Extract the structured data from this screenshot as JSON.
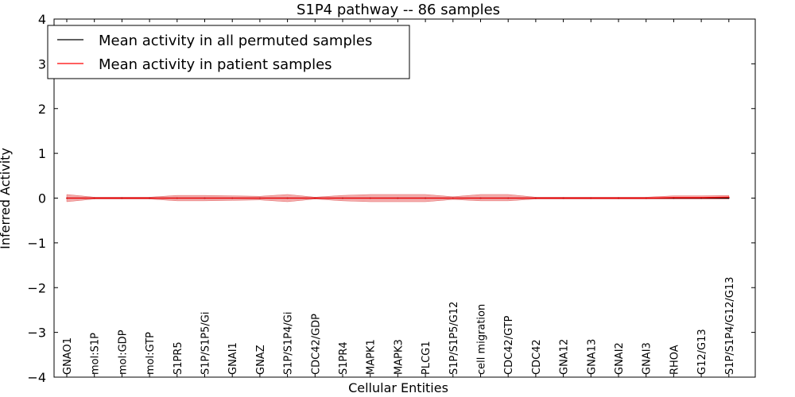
{
  "chart_data": {
    "type": "line",
    "title": "S1P4 pathway -- 86 samples",
    "xlabel": "Cellular Entities",
    "ylabel": "Inferred Activity",
    "ylim": [
      -4,
      4
    ],
    "yticks": [
      "4",
      "3",
      "2",
      "1",
      "0",
      "−1",
      "−2",
      "−3",
      "−4"
    ],
    "ytick_values": [
      4,
      3,
      2,
      1,
      0,
      -1,
      -2,
      -3,
      -4
    ],
    "categories": [
      "GNAO1",
      "mol:S1P",
      "mol:GDP",
      "mol:GTP",
      "S1PR5",
      "S1P/S1P5/Gi",
      "GNAI1",
      "GNAZ",
      "S1P/S1P4/Gi",
      "CDC42/GDP",
      "S1PR4",
      "MAPK1",
      "MAPK3",
      "PLCG1",
      "S1P/S1P5/G12",
      "cell migration",
      "CDC42/GTP",
      "CDC42",
      "GNA12",
      "GNA13",
      "GNAI2",
      "GNAI3",
      "RHOA",
      "G12/G13",
      "S1P/S1P4/G12/G13"
    ],
    "series": [
      {
        "name": "Mean activity in all permuted samples",
        "color": "#000000",
        "values": [
          0,
          0,
          0,
          0,
          0,
          0,
          0,
          0,
          0,
          0,
          0,
          0,
          0,
          0,
          0,
          0,
          0,
          0,
          0,
          0,
          0,
          0,
          0,
          0,
          0
        ],
        "band_lower": [
          -0.02,
          -0.02,
          -0.02,
          -0.02,
          -0.02,
          -0.02,
          -0.02,
          -0.02,
          -0.02,
          -0.02,
          -0.02,
          -0.02,
          -0.02,
          -0.02,
          -0.02,
          -0.02,
          -0.02,
          -0.02,
          -0.02,
          -0.02,
          -0.02,
          -0.02,
          -0.02,
          -0.02,
          -0.02
        ],
        "band_upper": [
          0.02,
          0.02,
          0.02,
          0.02,
          0.02,
          0.02,
          0.02,
          0.02,
          0.02,
          0.02,
          0.02,
          0.02,
          0.02,
          0.02,
          0.02,
          0.02,
          0.02,
          0.02,
          0.02,
          0.02,
          0.02,
          0.02,
          0.02,
          0.02,
          0.02
        ]
      },
      {
        "name": "Mean activity in patient samples",
        "color": "#ff0000",
        "band_color": "#f08080",
        "values": [
          0.0,
          0.0,
          0.0,
          0.0,
          0.0,
          0.0,
          0.0,
          0.0,
          0.0,
          0.0,
          0.0,
          0.0,
          0.0,
          0.0,
          0.0,
          0.0,
          0.0,
          0.0,
          0.0,
          0.0,
          0.0,
          0.0,
          0.01,
          0.01,
          0.02
        ],
        "band_lower": [
          -0.08,
          -0.02,
          -0.02,
          -0.02,
          -0.06,
          -0.06,
          -0.05,
          -0.04,
          -0.08,
          -0.02,
          -0.06,
          -0.08,
          -0.08,
          -0.08,
          -0.03,
          -0.06,
          -0.06,
          -0.02,
          -0.02,
          -0.02,
          -0.02,
          -0.02,
          -0.02,
          -0.02,
          -0.02
        ],
        "band_upper": [
          0.08,
          0.02,
          0.02,
          0.02,
          0.06,
          0.06,
          0.05,
          0.04,
          0.08,
          0.02,
          0.06,
          0.08,
          0.08,
          0.08,
          0.03,
          0.08,
          0.08,
          0.02,
          0.02,
          0.02,
          0.02,
          0.02,
          0.05,
          0.05,
          0.06
        ]
      }
    ],
    "legend_position": "top-left"
  }
}
